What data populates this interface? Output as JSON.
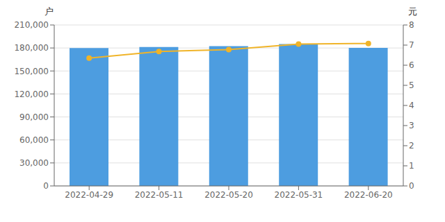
{
  "chart_data": {
    "type": "bar",
    "categories": [
      "2022-04-29",
      "2022-05-11",
      "2022-05-20",
      "2022-05-31",
      "2022-06-20"
    ],
    "series": [
      {
        "type": "bar",
        "color": "#4d9de0",
        "values": [
          179800,
          181200,
          182500,
          185200,
          180100
        ]
      },
      {
        "type": "line",
        "color": "#f0b429",
        "marker": "circle",
        "axis": "y2",
        "values": [
          6.35,
          6.68,
          6.78,
          7.05,
          7.08
        ]
      }
    ],
    "ylabel": "户",
    "y2label": "元",
    "ylim": [
      0,
      210000
    ],
    "yticks": [
      0,
      {
        "value": 30000,
        "label": "30,000"
      },
      {
        "value": 60000,
        "label": "60,000"
      },
      {
        "value": 90000,
        "label": "90,000"
      },
      {
        "value": 120000,
        "label": "120,000"
      },
      {
        "value": 150000,
        "label": "150,000"
      },
      {
        "value": 180000,
        "label": "180,000"
      },
      {
        "value": 210000,
        "label": "210,000"
      }
    ],
    "y2lim": [
      0,
      8
    ],
    "y2ticks": [
      0,
      1,
      2,
      3,
      4,
      5,
      6,
      7,
      8
    ],
    "grid": true
  }
}
